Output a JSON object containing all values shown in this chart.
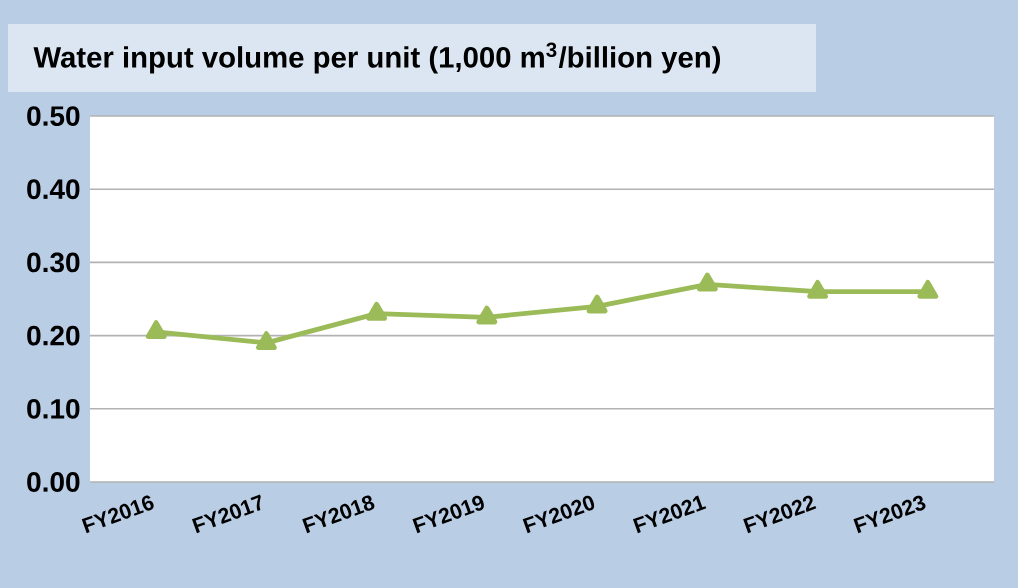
{
  "chart_data": {
    "type": "line",
    "title": "Water input volume per unit (1,000 m$^{3}$/billion yen)",
    "categories": [
      "FY2016",
      "FY2017",
      "FY2018",
      "FY2019",
      "FY2020",
      "FY2021",
      "FY2022",
      "FY2023"
    ],
    "series": [
      {
        "color": "#9bbb59",
        "values": [
          0.205,
          0.19,
          0.23,
          0.225,
          0.24,
          0.27,
          0.26,
          0.26
        ]
      }
    ],
    "ylim": [
      0,
      0.5
    ],
    "yticks": [
      {
        "value": 0,
        "label": "0.00"
      },
      {
        "value": 0.1,
        "label": "0.10"
      },
      {
        "value": 0.2,
        "label": "0.20"
      },
      {
        "value": 0.3,
        "label": "0.30"
      },
      {
        "value": 0.4,
        "label": "0.40"
      },
      {
        "value": 0.5,
        "label": "0.50"
      }
    ],
    "grid": "y",
    "marker": "triangle"
  }
}
